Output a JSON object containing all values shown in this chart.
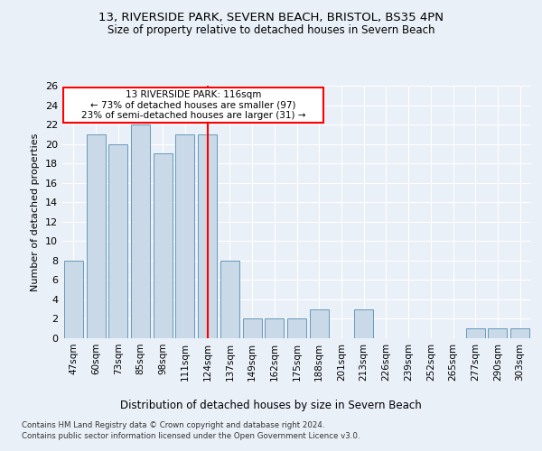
{
  "title1": "13, RIVERSIDE PARK, SEVERN BEACH, BRISTOL, BS35 4PN",
  "title2": "Size of property relative to detached houses in Severn Beach",
  "xlabel": "Distribution of detached houses by size in Severn Beach",
  "ylabel": "Number of detached properties",
  "categories": [
    "47sqm",
    "60sqm",
    "73sqm",
    "85sqm",
    "98sqm",
    "111sqm",
    "124sqm",
    "137sqm",
    "149sqm",
    "162sqm",
    "175sqm",
    "188sqm",
    "201sqm",
    "213sqm",
    "226sqm",
    "239sqm",
    "252sqm",
    "265sqm",
    "277sqm",
    "290sqm",
    "303sqm"
  ],
  "values": [
    8,
    21,
    20,
    22,
    19,
    21,
    21,
    8,
    2,
    2,
    2,
    3,
    0,
    3,
    0,
    0,
    0,
    0,
    1,
    1,
    1
  ],
  "bar_color": "#c9d9e8",
  "bar_edge_color": "#6699bb",
  "red_line_index": 6,
  "annotation_text": "13 RIVERSIDE PARK: 116sqm\n← 73% of detached houses are smaller (97)\n23% of semi-detached houses are larger (31) →",
  "footer1": "Contains HM Land Registry data © Crown copyright and database right 2024.",
  "footer2": "Contains public sector information licensed under the Open Government Licence v3.0.",
  "ylim": [
    0,
    26
  ],
  "yticks": [
    0,
    2,
    4,
    6,
    8,
    10,
    12,
    14,
    16,
    18,
    20,
    22,
    24,
    26
  ],
  "background_color": "#eaf0f8",
  "plot_bg_color": "#eaf0f8"
}
